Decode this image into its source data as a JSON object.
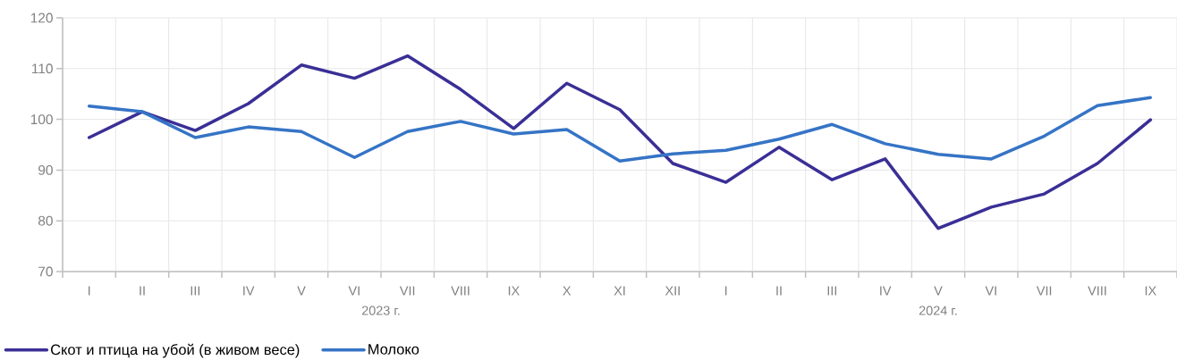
{
  "chart_data": {
    "type": "line",
    "categories": [
      "I",
      "II",
      "III",
      "IV",
      "V",
      "VI",
      "VII",
      "VIII",
      "IX",
      "X",
      "XI",
      "XII",
      "I",
      "II",
      "III",
      "IV",
      "V",
      "VI",
      "VII",
      "VIII",
      "IX"
    ],
    "series": [
      {
        "name": "Скот и птица на убой (в живом весе)",
        "color": "#3a2f96",
        "values": [
          96.4,
          101.5,
          97.8,
          103.1,
          110.7,
          108.1,
          112.5,
          105.9,
          98.2,
          107.1,
          101.9,
          91.3,
          87.6,
          94.5,
          88.1,
          92.2,
          78.5,
          82.7,
          85.3,
          91.3,
          99.9
        ]
      },
      {
        "name": "Молоко",
        "color": "#3574c6",
        "values": [
          102.6,
          101.5,
          96.4,
          98.5,
          97.6,
          92.5,
          97.6,
          99.6,
          97.1,
          98.0,
          91.8,
          93.2,
          93.9,
          96.1,
          99.0,
          95.2,
          93.1,
          92.2,
          96.7,
          102.7,
          104.3
        ]
      }
    ],
    "annotations": [
      "2023 г.",
      "2024 г."
    ],
    "ylim": [
      70,
      120
    ],
    "yticks": [
      70,
      80,
      90,
      100,
      110,
      120
    ],
    "grid": true,
    "legend": "bottom left",
    "marker": "none",
    "line_style": "solid"
  }
}
